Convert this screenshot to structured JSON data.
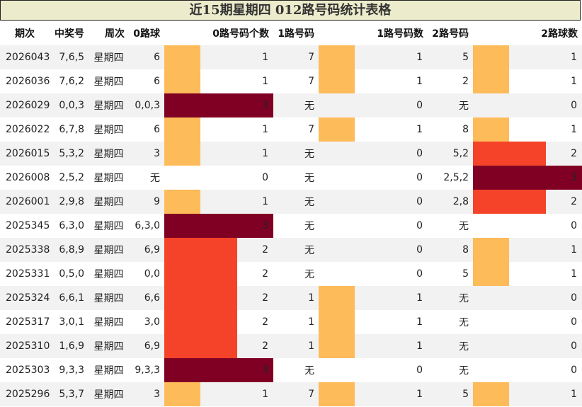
{
  "chart_data": {
    "type": "table",
    "title": "近15期星期四 012路号码统计表格",
    "columns": [
      "期次",
      "中奖号",
      "周次",
      "0路球",
      "0路号码个数",
      "1路号码",
      "1路号码数",
      "2路号码",
      "2路球数"
    ],
    "count_max": 3,
    "bar_colors": {
      "1": "#fdbb5a",
      "2": "#f44328",
      "3": "#800024"
    },
    "rows": [
      {
        "issue": "2026043",
        "numbers": "7,6,5",
        "weekday": "星期四",
        "road0": "6",
        "road0_count": 1,
        "road1": "7",
        "road1_count": 1,
        "road2": "5",
        "road2_count": 1
      },
      {
        "issue": "2026036",
        "numbers": "7,6,2",
        "weekday": "星期四",
        "road0": "6",
        "road0_count": 1,
        "road1": "7",
        "road1_count": 1,
        "road2": "2",
        "road2_count": 1
      },
      {
        "issue": "2026029",
        "numbers": "0,0,3",
        "weekday": "星期四",
        "road0": "0,0,3",
        "road0_count": 3,
        "road1": "无",
        "road1_count": 0,
        "road2": "无",
        "road2_count": 0
      },
      {
        "issue": "2026022",
        "numbers": "6,7,8",
        "weekday": "星期四",
        "road0": "6",
        "road0_count": 1,
        "road1": "7",
        "road1_count": 1,
        "road2": "8",
        "road2_count": 1
      },
      {
        "issue": "2026015",
        "numbers": "5,3,2",
        "weekday": "星期四",
        "road0": "3",
        "road0_count": 1,
        "road1": "无",
        "road1_count": 0,
        "road2": "5,2",
        "road2_count": 2
      },
      {
        "issue": "2026008",
        "numbers": "2,5,2",
        "weekday": "星期四",
        "road0": "无",
        "road0_count": 0,
        "road1": "无",
        "road1_count": 0,
        "road2": "2,5,2",
        "road2_count": 3
      },
      {
        "issue": "2026001",
        "numbers": "2,9,8",
        "weekday": "星期四",
        "road0": "9",
        "road0_count": 1,
        "road1": "无",
        "road1_count": 0,
        "road2": "2,8",
        "road2_count": 2
      },
      {
        "issue": "2025345",
        "numbers": "6,3,0",
        "weekday": "星期四",
        "road0": "6,3,0",
        "road0_count": 3,
        "road1": "无",
        "road1_count": 0,
        "road2": "无",
        "road2_count": 0
      },
      {
        "issue": "2025338",
        "numbers": "6,8,9",
        "weekday": "星期四",
        "road0": "6,9",
        "road0_count": 2,
        "road1": "无",
        "road1_count": 0,
        "road2": "8",
        "road2_count": 1
      },
      {
        "issue": "2025331",
        "numbers": "0,5,0",
        "weekday": "星期四",
        "road0": "0,0",
        "road0_count": 2,
        "road1": "无",
        "road1_count": 0,
        "road2": "5",
        "road2_count": 1
      },
      {
        "issue": "2025324",
        "numbers": "6,6,1",
        "weekday": "星期四",
        "road0": "6,6",
        "road0_count": 2,
        "road1": "1",
        "road1_count": 1,
        "road2": "无",
        "road2_count": 0
      },
      {
        "issue": "2025317",
        "numbers": "3,0,1",
        "weekday": "星期四",
        "road0": "3,0",
        "road0_count": 2,
        "road1": "1",
        "road1_count": 1,
        "road2": "无",
        "road2_count": 0
      },
      {
        "issue": "2025310",
        "numbers": "1,6,9",
        "weekday": "星期四",
        "road0": "6,9",
        "road0_count": 2,
        "road1": "1",
        "road1_count": 1,
        "road2": "无",
        "road2_count": 0
      },
      {
        "issue": "2025303",
        "numbers": "9,3,3",
        "weekday": "星期四",
        "road0": "9,3,3",
        "road0_count": 3,
        "road1": "无",
        "road1_count": 0,
        "road2": "无",
        "road2_count": 0
      },
      {
        "issue": "2025296",
        "numbers": "5,3,7",
        "weekday": "星期四",
        "road0": "3",
        "road0_count": 1,
        "road1": "7",
        "road1_count": 1,
        "road2": "5",
        "road2_count": 1
      }
    ]
  }
}
